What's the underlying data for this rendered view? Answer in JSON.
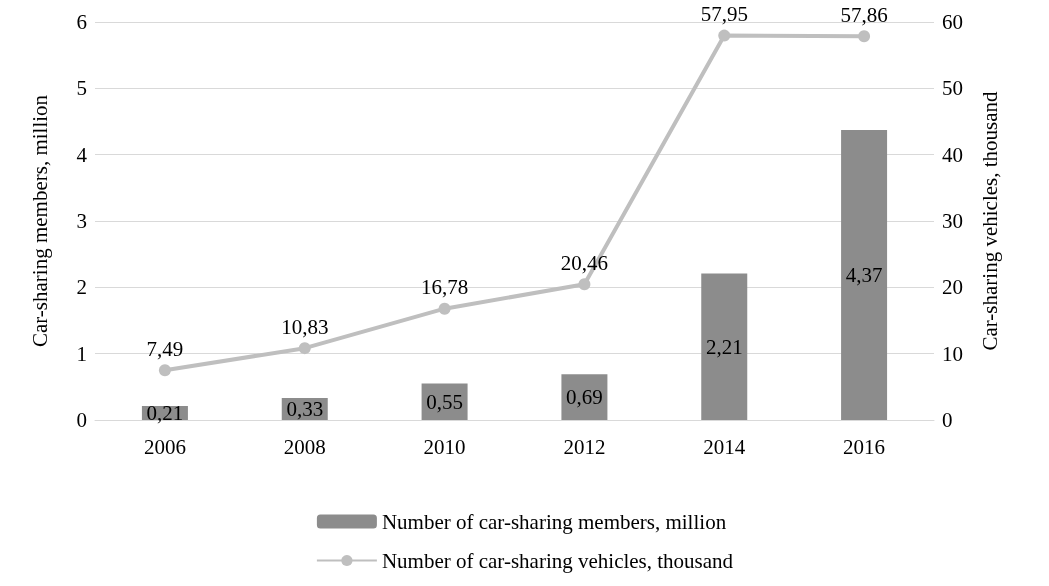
{
  "chart_data": {
    "type": "bar",
    "categories": [
      "2006",
      "2008",
      "2010",
      "2012",
      "2014",
      "2016"
    ],
    "ylabel": "Car-sharing members, million",
    "y2label": "Car-sharing vehicles, thousand",
    "ylim": [
      0,
      6
    ],
    "yticks": [
      0,
      1,
      2,
      3,
      4,
      5,
      6
    ],
    "y2lim": [
      0,
      60
    ],
    "y2ticks": [
      0,
      10,
      20,
      30,
      40,
      50,
      60
    ],
    "grid": "y",
    "legend": "bottom",
    "series": [
      {
        "name": "Number of car-sharing members, million",
        "color": "#8c8c8c",
        "values": [
          0.21,
          0.33,
          0.55,
          0.69,
          2.21,
          4.37
        ],
        "value_labels": [
          "0,21",
          "0,33",
          "0,55",
          "0,69",
          "2,21",
          "4,37"
        ]
      },
      {
        "name": "Number of car-sharing vehicles, thousand",
        "type": "line",
        "axis": "y2",
        "color": "#bfbfbf",
        "marker": "circle",
        "values": [
          7.49,
          10.83,
          16.78,
          20.46,
          57.95,
          57.86
        ],
        "value_labels": [
          "7,49",
          "10,83",
          "16,78",
          "20,46",
          "57,95",
          "57,86"
        ]
      }
    ]
  }
}
